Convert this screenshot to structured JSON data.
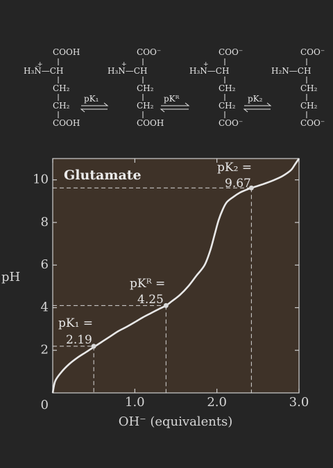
{
  "structures": [
    {
      "top": "COOH",
      "amino": "H₃N̅—CH",
      "amino_charge": "+",
      "r1": "CH₂",
      "r2": "CH₂",
      "bottom": "COOH"
    },
    {
      "top": "COO⁻",
      "amino": "H₃N—CH",
      "amino_charge": "+",
      "r1": "CH₂",
      "r2": "CH₂",
      "bottom": "COOH"
    },
    {
      "top": "COO⁻",
      "amino": "H₃N—CH",
      "amino_charge": "+",
      "r1": "CH₂",
      "r2": "CH₂",
      "bottom": "COO⁻"
    },
    {
      "top": "COO⁻",
      "amino": "H₂N—CH",
      "amino_charge": "",
      "r1": "CH₂",
      "r2": "CH₂",
      "bottom": "COO⁻"
    }
  ],
  "equilibria": [
    "pK₁",
    "pKᴿ",
    "pK₂"
  ],
  "chart_data": {
    "type": "line",
    "title": "Glutamate",
    "xlabel": "OH⁻ (equivalents)",
    "ylabel": "pH",
    "xlim": [
      0,
      3.0
    ],
    "ylim": [
      0,
      11
    ],
    "x_ticks": [
      "0",
      "1.0",
      "2.0",
      "3.0"
    ],
    "y_ticks": [
      "2",
      "4",
      "6",
      "8",
      "10"
    ],
    "grid": false,
    "series": [
      {
        "x": [
          0.0,
          0.03,
          0.1,
          0.2,
          0.3,
          0.4,
          0.5,
          0.6,
          0.7,
          0.8,
          0.9,
          1.0,
          1.1,
          1.2,
          1.3,
          1.38,
          1.45,
          1.55,
          1.65,
          1.75,
          1.85,
          1.92,
          1.97,
          2.02,
          2.07,
          2.12,
          2.2,
          2.28,
          2.35,
          2.42,
          2.5,
          2.6,
          2.7,
          2.8,
          2.9,
          2.95,
          3.0
        ],
        "y": [
          0.0,
          0.55,
          0.95,
          1.35,
          1.65,
          1.9,
          2.15,
          2.4,
          2.65,
          2.9,
          3.1,
          3.32,
          3.55,
          3.75,
          3.95,
          4.1,
          4.3,
          4.6,
          5.0,
          5.5,
          6.0,
          6.7,
          7.4,
          8.1,
          8.6,
          8.95,
          9.2,
          9.4,
          9.52,
          9.62,
          9.72,
          9.85,
          10.0,
          10.18,
          10.45,
          10.72,
          11.0
        ]
      }
    ],
    "annotations": [
      {
        "label": "pK₁ =",
        "value": "2.19",
        "x": 0.5,
        "y": 2.19
      },
      {
        "label": "pKᴿ =",
        "value": "4.25",
        "x": 1.38,
        "y": 4.1
      },
      {
        "label": "pK₂ =",
        "value": "9.67",
        "x": 2.42,
        "y": 9.62
      }
    ]
  }
}
